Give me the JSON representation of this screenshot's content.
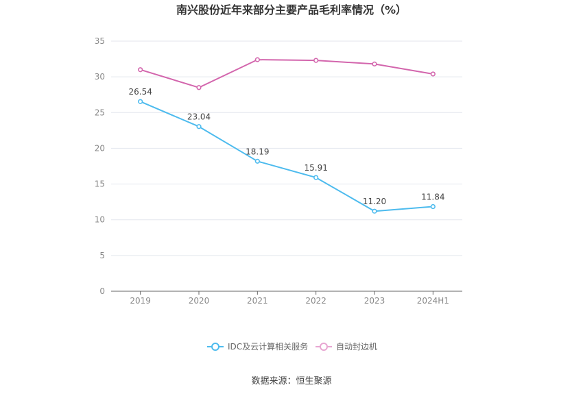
{
  "chart_data": {
    "type": "line",
    "title": "南兴股份近年来部分主要产品毛利率情况（%）",
    "categories": [
      "2019",
      "2020",
      "2021",
      "2022",
      "2023",
      "2024H1"
    ],
    "ylim": [
      0,
      35
    ],
    "yticks": [
      0,
      5,
      10,
      15,
      20,
      25,
      30,
      35
    ],
    "grid": true,
    "legend_position": "bottom",
    "series": [
      {
        "name": "IDC及云计算相关服务",
        "color": "#4dbbee",
        "values": [
          26.54,
          23.04,
          18.19,
          15.91,
          11.2,
          11.84
        ],
        "data_labels": [
          "26.54",
          "23.04",
          "18.19",
          "15.91",
          "11.20",
          "11.84"
        ],
        "show_labels": true
      },
      {
        "name": "自动封边机",
        "color": "#d366ad",
        "values": [
          31.0,
          28.5,
          32.4,
          32.3,
          31.8,
          30.4
        ],
        "show_labels": false
      }
    ]
  },
  "source": "数据来源：恒生聚源"
}
